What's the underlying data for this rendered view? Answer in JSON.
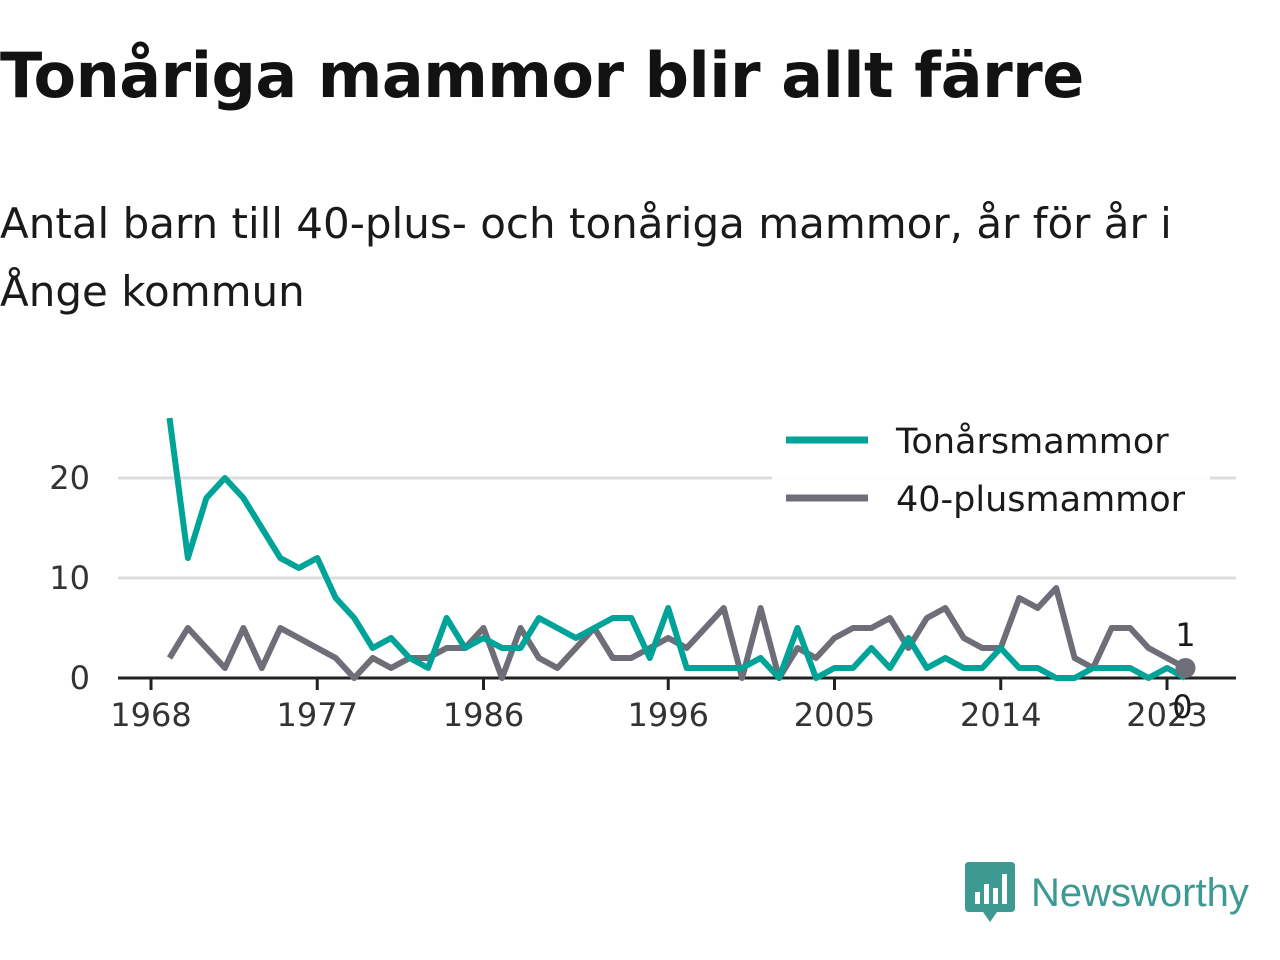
{
  "title": "Tonåriga mammor blir allt färre",
  "subtitle": "Antal barn till 40-plus- och tonåriga mammor, år för år i Ånge kommun",
  "brand": {
    "name": "Newsworthy",
    "icon": "newsworthy-logo-icon",
    "color": "#3d9a92"
  },
  "chart_data": {
    "type": "line",
    "x": [
      1969,
      1970,
      1971,
      1972,
      1973,
      1974,
      1975,
      1976,
      1977,
      1978,
      1979,
      1980,
      1981,
      1982,
      1983,
      1984,
      1985,
      1986,
      1987,
      1988,
      1989,
      1990,
      1991,
      1992,
      1993,
      1994,
      1995,
      1996,
      1997,
      1998,
      1999,
      2000,
      2001,
      2002,
      2003,
      2004,
      2005,
      2006,
      2007,
      2008,
      2009,
      2010,
      2011,
      2012,
      2013,
      2014,
      2015,
      2016,
      2017,
      2018,
      2019,
      2020,
      2021,
      2022,
      2023,
      2024
    ],
    "x_ticks": [
      1968,
      1977,
      1986,
      1996,
      2005,
      2014,
      2023
    ],
    "y_ticks": [
      0,
      10,
      20
    ],
    "ylim": [
      0,
      27
    ],
    "grid": true,
    "legend_position": "top-right",
    "series": [
      {
        "name": "Tonårsmammor",
        "color": "#00a398",
        "values": [
          26,
          12,
          18,
          20,
          18,
          15,
          12,
          11,
          12,
          8,
          6,
          3,
          4,
          2,
          1,
          6,
          3,
          4,
          3,
          3,
          6,
          5,
          4,
          5,
          6,
          6,
          2,
          7,
          1,
          1,
          1,
          1,
          2,
          0,
          5,
          0,
          1,
          1,
          3,
          1,
          4,
          1,
          2,
          1,
          1,
          3,
          1,
          1,
          0,
          0,
          1,
          1,
          1,
          0,
          1,
          0
        ],
        "end_label": "0"
      },
      {
        "name": "40-plusmammor",
        "color": "#6e6e78",
        "values": [
          2,
          5,
          3,
          1,
          5,
          1,
          5,
          4,
          3,
          2,
          0,
          2,
          1,
          2,
          2,
          3,
          3,
          5,
          0,
          5,
          2,
          1,
          3,
          5,
          2,
          2,
          3,
          4,
          3,
          5,
          7,
          0,
          7,
          0,
          3,
          2,
          4,
          5,
          5,
          6,
          3,
          6,
          7,
          4,
          3,
          3,
          8,
          7,
          9,
          2,
          1,
          5,
          5,
          3,
          2,
          1
        ],
        "end_label": "1"
      }
    ]
  }
}
